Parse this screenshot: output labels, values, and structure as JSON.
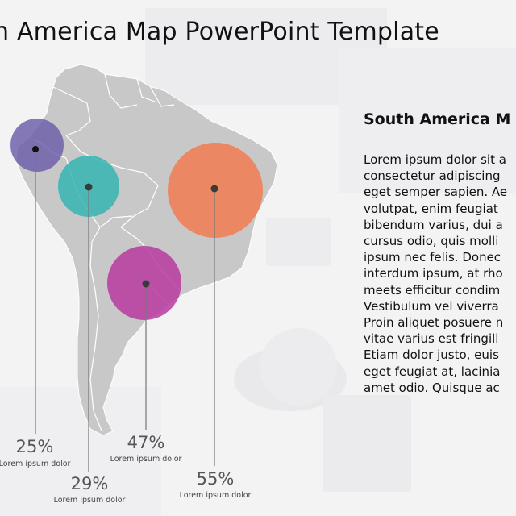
{
  "title": "h America Map PowerPoint Template",
  "side_panel": {
    "heading": "South America M",
    "lines": [
      "Lorem ipsum dolor sit a",
      "consectetur adipiscing",
      "eget semper sapien. Ae",
      "volutpat, enim feugiat",
      "bibendum varius, dui a",
      "cursus odio, quis molli",
      "ipsum nec felis. Donec",
      "interdum ipsum, at rho",
      "meets efficitur condim",
      "Vestibulum vel viverra",
      "Proin aliquet posuere n",
      "vitae varius est fringill",
      "Etiam dolor justo, euis",
      "eget feugiat at, lacinia",
      "amet odio. Quisque ac"
    ]
  },
  "markers": [
    {
      "percent": "25%",
      "caption": "Lorem ipsum dolor",
      "color": "#6b5ea8"
    },
    {
      "percent": "29%",
      "caption": "Lorem ipsum dolor",
      "color": "#35b5b2"
    },
    {
      "percent": "47%",
      "caption": "Lorem ipsum dolor",
      "color": "#b83aa0"
    },
    {
      "percent": "55%",
      "caption": "Lorem ipsum dolor",
      "color": "#ee7f57"
    }
  ]
}
